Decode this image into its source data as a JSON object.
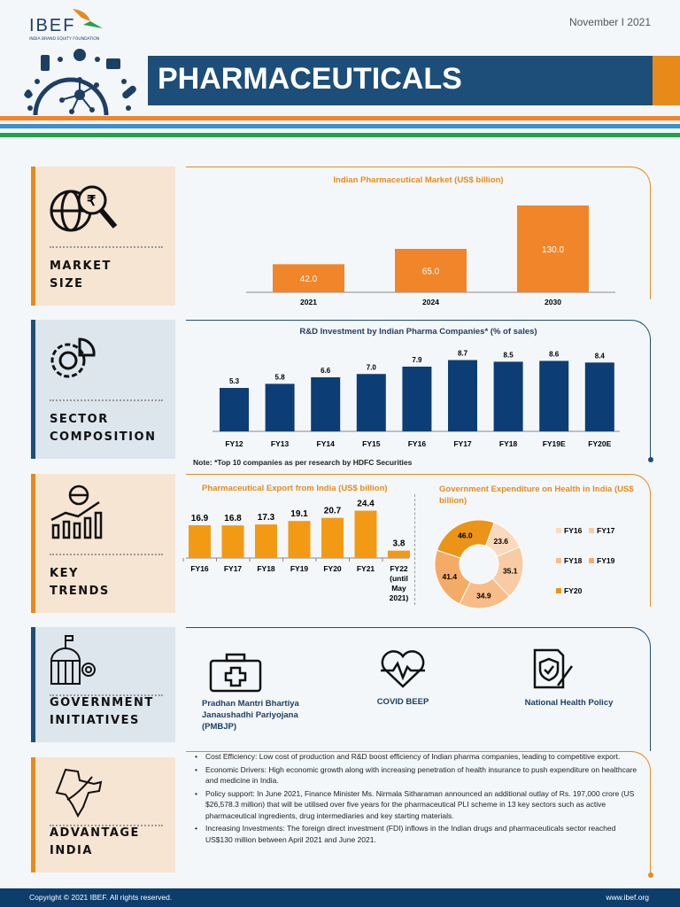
{
  "header": {
    "logo": "IBEF",
    "logo_sub": "INDIA BRAND EQUITY FOUNDATION",
    "date": "November I 2021",
    "title": "PHARMACEUTICALS"
  },
  "colors": {
    "orange": "#e88a1a",
    "navy": "#1d4e79",
    "green": "#1fa34a",
    "blue_stripe": "#3a8fd1"
  },
  "sections": [
    {
      "label": "MARKET\nSIZE",
      "icon": "globe-search-rupee-icon"
    },
    {
      "label": "SECTOR\nCOMPOSITION",
      "icon": "gear-pie-icon"
    },
    {
      "label": "KEY\nTRENDS",
      "icon": "globe-growth-chart-icon"
    },
    {
      "label": "GOVERNMENT\nINITIATIVES",
      "icon": "government-building-icon"
    },
    {
      "label": "ADVANTAGE\nINDIA",
      "icon": "india-map-icon"
    }
  ],
  "chart_data": [
    {
      "type": "bar",
      "title": "Indian Pharmaceutical Market (US$ billion)",
      "categories": [
        "2021",
        "2024",
        "2030"
      ],
      "values": [
        42.0,
        65.0,
        130.0
      ],
      "color": "#f0852a"
    },
    {
      "type": "bar",
      "title": "R&D Investment by Indian Pharma Companies* (% of sales)",
      "categories": [
        "FY12",
        "FY13",
        "FY14",
        "FY15",
        "FY16",
        "FY17",
        "FY18",
        "FY19E",
        "FY20E"
      ],
      "values": [
        5.3,
        5.8,
        6.6,
        7.0,
        7.9,
        8.7,
        8.5,
        8.6,
        8.4
      ],
      "color": "#0d3d75",
      "note": "Note: *Top 10 companies as per research by HDFC Securities"
    },
    {
      "type": "bar",
      "title": "Pharmaceutical Export from India (US$ billion)",
      "categories": [
        "FY16",
        "FY17",
        "FY18",
        "FY19",
        "FY20",
        "FY21",
        "FY22 (until May 2021)"
      ],
      "values": [
        16.9,
        16.8,
        17.3,
        19.1,
        20.7,
        24.4,
        3.8
      ],
      "color": "#f39a14"
    },
    {
      "type": "pie",
      "donut": true,
      "title": "Government Expenditure on Health in India (US$ billion)",
      "categories": [
        "FY16",
        "FY17",
        "FY18",
        "FY19",
        "FY20"
      ],
      "values": [
        23.6,
        35.1,
        34.9,
        41.4,
        46.0
      ],
      "colors": [
        "#fad9bd",
        "#f9cba4",
        "#f7bc87",
        "#f4ab67",
        "#eb9418"
      ],
      "legend": "right"
    }
  ],
  "initiatives": [
    {
      "label": "Pradhan Mantri Bhartiya Janaushadhi Pariyojana (PMBJP)",
      "icon": "first-aid-kit-icon"
    },
    {
      "label": "COVID BEEP",
      "icon": "heartbeat-icon"
    },
    {
      "label": "National Health Policy",
      "icon": "document-shield-icon"
    }
  ],
  "advantages": [
    "Cost Efficiency: Low cost of production and R&D boost efficiency of Indian pharma companies, leading to competitive export.",
    "Economic Drivers: High economic growth along with increasing penetration of health insurance to push expenditure on healthcare and medicine in India.",
    "Policy support: In June 2021, Finance Minister Ms. Nirmala Sitharaman announced an additional outlay of Rs. 197,000 crore (US $26,578.3 million) that will be utilised over five years for the pharmaceutical PLI scheme in 13 key sectors such as active pharmaceutical ingredients, drug intermediaries and key starting materials.",
    "Increasing Investments: The foreign direct investment (FDI) inflows in the Indian drugs and pharmaceuticals sector reached US$130 million between April 2021 and June 2021."
  ],
  "footer": {
    "copyright": "Copyright © 2021 IBEF. All rights reserved.",
    "url": "www.ibef.org"
  }
}
